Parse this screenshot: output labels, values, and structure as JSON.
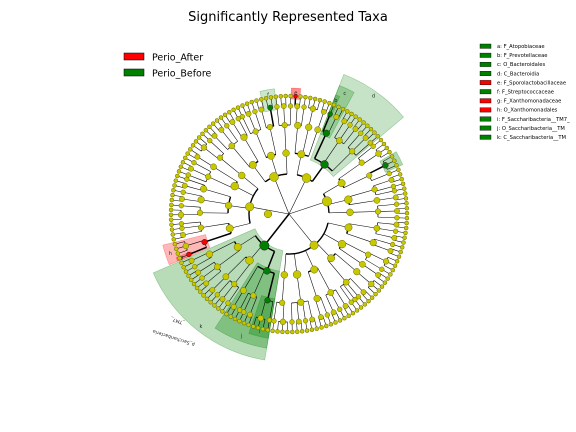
{
  "title": "Significantly Represented Taxa",
  "groups": [
    {
      "label": "Perio_After",
      "color": "#ff0000"
    },
    {
      "label": "Perio_Before",
      "color": "#008000"
    }
  ],
  "colors": {
    "node_default": "#c8c800",
    "node_stroke": "#666600",
    "edge": "#000000"
  },
  "taxa_key": [
    {
      "letter": "a",
      "text": "a: F_Atopobiaceae",
      "group": 1
    },
    {
      "letter": "b",
      "text": "b: F_Prevotellaceae",
      "group": 1
    },
    {
      "letter": "c",
      "text": "c: O_Bacteroidales",
      "group": 1
    },
    {
      "letter": "d",
      "text": "d: C_Bacteroidia",
      "group": 1
    },
    {
      "letter": "e",
      "text": "e: F_Sporolactobacillaceae",
      "group": 0
    },
    {
      "letter": "f",
      "text": "f: F_Streptococcaceae",
      "group": 1
    },
    {
      "letter": "g",
      "text": "g: F_Xanthomonadaceae",
      "group": 0
    },
    {
      "letter": "h",
      "text": "h: O_Xanthomonadales",
      "group": 0
    },
    {
      "letter": "i",
      "text": "i: F_Saccharibacteria__TM7_",
      "group": 1
    },
    {
      "letter": "j",
      "text": "j: O_Saccharibacteria__TM",
      "group": 1
    },
    {
      "letter": "k",
      "text": "k: C_Saccharibacteria__TM",
      "group": 1
    }
  ],
  "clade_labels": {
    "phylum": "p_Saccharibacteria",
    "phylum_suffix": "_TM7_"
  }
}
